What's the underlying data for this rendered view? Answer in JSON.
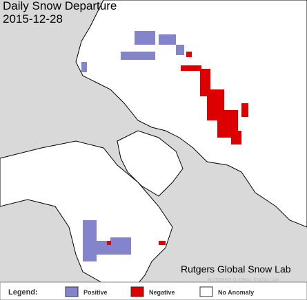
{
  "header": {
    "title": "Daily Snow Departure",
    "date": "2015-12-28"
  },
  "credit": "Rutgers Global Snow Lab",
  "watermark": "RUTGERS GLOBAL SNOW LAB",
  "legend": {
    "title": "Legend:",
    "items": [
      {
        "label": "Positive",
        "color": "#8484cc"
      },
      {
        "label": "Negative",
        "color": "#dd0000"
      },
      {
        "label": "No Anomaly",
        "color": "#ffffff"
      }
    ]
  }
}
